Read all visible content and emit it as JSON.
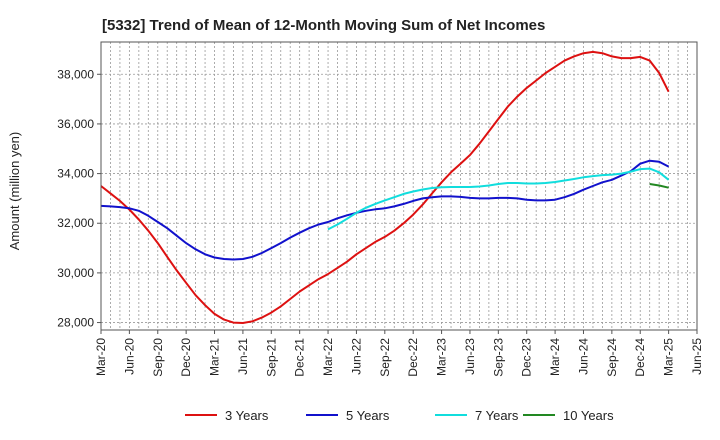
{
  "chart_data": {
    "type": "line",
    "title": "[5332]  Trend of Mean of 12-Month Moving Sum of Net Incomes",
    "xlabel": "",
    "ylabel": "Amount (million yen)",
    "ylim": [
      27700,
      39300
    ],
    "yticks": [
      28000,
      30000,
      32000,
      34000,
      36000,
      38000
    ],
    "ytick_labels": [
      "28,000",
      "30,000",
      "32,000",
      "34,000",
      "36,000",
      "38,000"
    ],
    "xlim": [
      "2020-03",
      "2025-06"
    ],
    "xtick_labels": [
      "Mar-20",
      "Jun-20",
      "Sep-20",
      "Dec-20",
      "Mar-21",
      "Jun-21",
      "Sep-21",
      "Dec-21",
      "Mar-22",
      "Jun-22",
      "Sep-22",
      "Dec-22",
      "Mar-23",
      "Jun-23",
      "Sep-23",
      "Dec-23",
      "Mar-24",
      "Jun-24",
      "Sep-24",
      "Dec-24",
      "Mar-25",
      "Jun-25"
    ],
    "grid": true,
    "legend_position": "bottom",
    "series": [
      {
        "name": "3 Years",
        "color": "#dd1111",
        "x": [
          "2020-03",
          "2020-04",
          "2020-05",
          "2020-06",
          "2020-07",
          "2020-08",
          "2020-09",
          "2020-10",
          "2020-11",
          "2020-12",
          "2021-01",
          "2021-02",
          "2021-03",
          "2021-04",
          "2021-05",
          "2021-06",
          "2021-07",
          "2021-08",
          "2021-09",
          "2021-10",
          "2021-11",
          "2021-12",
          "2022-01",
          "2022-02",
          "2022-03",
          "2022-04",
          "2022-05",
          "2022-06",
          "2022-07",
          "2022-08",
          "2022-09",
          "2022-10",
          "2022-11",
          "2022-12",
          "2023-01",
          "2023-02",
          "2023-03",
          "2023-04",
          "2023-05",
          "2023-06",
          "2023-07",
          "2023-08",
          "2023-09",
          "2023-10",
          "2023-11",
          "2023-12",
          "2024-01",
          "2024-02",
          "2024-03",
          "2024-04",
          "2024-05",
          "2024-06",
          "2024-07",
          "2024-08",
          "2024-09",
          "2024-10",
          "2024-11",
          "2024-12",
          "2025-01",
          "2025-02",
          "2025-03"
        ],
        "values": [
          33500,
          33200,
          32900,
          32550,
          32150,
          31700,
          31200,
          30650,
          30100,
          29600,
          29100,
          28700,
          28350,
          28120,
          28000,
          27980,
          28050,
          28200,
          28400,
          28650,
          28950,
          29250,
          29500,
          29750,
          29950,
          30200,
          30450,
          30750,
          31000,
          31250,
          31450,
          31700,
          32000,
          32350,
          32750,
          33200,
          33650,
          34050,
          34400,
          34750,
          35200,
          35700,
          36200,
          36700,
          37100,
          37450,
          37750,
          38050,
          38300,
          38550,
          38720,
          38850,
          38900,
          38850,
          38720,
          38650,
          38650,
          38700,
          38550,
          38050,
          37300
        ]
      },
      {
        "name": "5 Years",
        "color": "#1111cc",
        "x": [
          "2020-03",
          "2020-04",
          "2020-05",
          "2020-06",
          "2020-07",
          "2020-08",
          "2020-09",
          "2020-10",
          "2020-11",
          "2020-12",
          "2021-01",
          "2021-02",
          "2021-03",
          "2021-04",
          "2021-05",
          "2021-06",
          "2021-07",
          "2021-08",
          "2021-09",
          "2021-10",
          "2021-11",
          "2021-12",
          "2022-01",
          "2022-02",
          "2022-03",
          "2022-04",
          "2022-05",
          "2022-06",
          "2022-07",
          "2022-08",
          "2022-09",
          "2022-10",
          "2022-11",
          "2022-12",
          "2023-01",
          "2023-02",
          "2023-03",
          "2023-04",
          "2023-05",
          "2023-06",
          "2023-07",
          "2023-08",
          "2023-09",
          "2023-10",
          "2023-11",
          "2023-12",
          "2024-01",
          "2024-02",
          "2024-03",
          "2024-04",
          "2024-05",
          "2024-06",
          "2024-07",
          "2024-08",
          "2024-09",
          "2024-10",
          "2024-11",
          "2024-12",
          "2025-01",
          "2025-02",
          "2025-03"
        ],
        "values": [
          32700,
          32680,
          32650,
          32600,
          32500,
          32300,
          32050,
          31800,
          31500,
          31200,
          30950,
          30750,
          30620,
          30560,
          30540,
          30560,
          30650,
          30800,
          31000,
          31200,
          31420,
          31620,
          31800,
          31950,
          32050,
          32200,
          32320,
          32420,
          32500,
          32560,
          32600,
          32680,
          32780,
          32900,
          33000,
          33050,
          33080,
          33080,
          33060,
          33020,
          33000,
          33000,
          33020,
          33020,
          33000,
          32950,
          32920,
          32920,
          32950,
          33050,
          33180,
          33350,
          33500,
          33650,
          33750,
          33920,
          34100,
          34400,
          34520,
          34480,
          34280
        ]
      },
      {
        "name": "7 Years",
        "color": "#11dddd",
        "x": [
          "2022-03",
          "2022-04",
          "2022-05",
          "2022-06",
          "2022-07",
          "2022-08",
          "2022-09",
          "2022-10",
          "2022-11",
          "2022-12",
          "2023-01",
          "2023-02",
          "2023-03",
          "2023-04",
          "2023-05",
          "2023-06",
          "2023-07",
          "2023-08",
          "2023-09",
          "2023-10",
          "2023-11",
          "2023-12",
          "2024-01",
          "2024-02",
          "2024-03",
          "2024-04",
          "2024-05",
          "2024-06",
          "2024-07",
          "2024-08",
          "2024-09",
          "2024-10",
          "2024-11",
          "2024-12",
          "2025-01",
          "2025-02",
          "2025-03"
        ],
        "values": [
          31750,
          31950,
          32180,
          32420,
          32620,
          32780,
          32920,
          33050,
          33180,
          33280,
          33360,
          33420,
          33450,
          33460,
          33460,
          33460,
          33480,
          33520,
          33580,
          33620,
          33620,
          33600,
          33600,
          33620,
          33660,
          33720,
          33780,
          33850,
          33900,
          33940,
          33960,
          34000,
          34080,
          34180,
          34200,
          34050,
          33750
        ]
      },
      {
        "name": "10 Years",
        "color": "#228822",
        "x": [
          "2025-01",
          "2025-02",
          "2025-03"
        ],
        "values": [
          33580,
          33520,
          33430
        ]
      }
    ]
  }
}
